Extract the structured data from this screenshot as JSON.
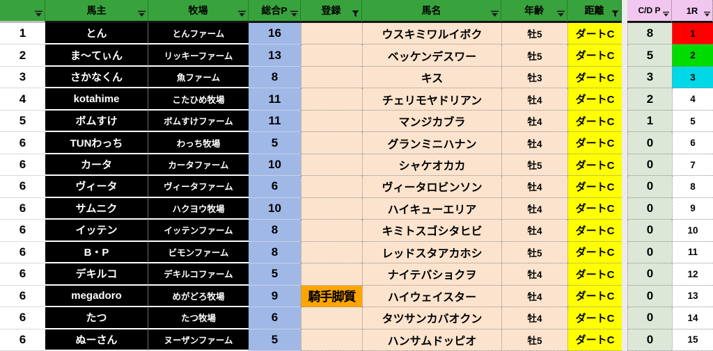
{
  "table": {
    "headers": [
      {
        "label": "",
        "filter": "dropdown"
      },
      {
        "label": "馬主",
        "filter": "dropdown"
      },
      {
        "label": "牧場",
        "filter": "dropdown"
      },
      {
        "label": "総合P",
        "filter": "dropdown"
      },
      {
        "label": "登録",
        "filter": "funnel"
      },
      {
        "label": "馬名",
        "filter": "dropdown"
      },
      {
        "label": "年齢",
        "filter": "dropdown"
      },
      {
        "label": "距離",
        "filter": "funnel"
      },
      {
        "label": "C/D P",
        "filter": "dropdown"
      },
      {
        "label": "1R",
        "filter": "dropdown"
      }
    ],
    "rows": [
      {
        "rank": "1",
        "owner": "とん",
        "farm": "とんファーム",
        "total_p": "16",
        "registration": "",
        "horse": "ウスキミワルイボク",
        "age": "牡5",
        "distance": "ダートC",
        "cd_p": "8",
        "r1": "1",
        "r1_color": "#FF0000"
      },
      {
        "rank": "2",
        "owner": "ま〜てぃん",
        "farm": "リッキーファーム",
        "total_p": "13",
        "registration": "",
        "horse": "ベッケンデスワー",
        "age": "牡5",
        "distance": "ダートC",
        "cd_p": "5",
        "r1": "2",
        "r1_color": "#00DC00"
      },
      {
        "rank": "3",
        "owner": "さかなくん",
        "farm": "魚ファーム",
        "total_p": "8",
        "registration": "",
        "horse": "キス",
        "age": "牡3",
        "distance": "ダートC",
        "cd_p": "3",
        "r1": "3",
        "r1_color": "#00D8E8"
      },
      {
        "rank": "4",
        "owner": "kotahime",
        "farm": "こたひめ牧場",
        "total_p": "11",
        "registration": "",
        "horse": "チェリモヤドリアン",
        "age": "牡4",
        "distance": "ダートC",
        "cd_p": "2",
        "r1": "4",
        "r1_color": ""
      },
      {
        "rank": "5",
        "owner": "ボムすけ",
        "farm": "ボムすけファーム",
        "total_p": "11",
        "registration": "",
        "horse": "マンジカブラ",
        "age": "牡4",
        "distance": "ダートC",
        "cd_p": "1",
        "r1": "5",
        "r1_color": ""
      },
      {
        "rank": "6",
        "owner": "TUNわっち",
        "farm": "わっち牧場",
        "total_p": "5",
        "registration": "",
        "horse": "グランミニハナン",
        "age": "牡4",
        "distance": "ダートC",
        "cd_p": "0",
        "r1": "6",
        "r1_color": ""
      },
      {
        "rank": "6",
        "owner": "カータ",
        "farm": "カータファーム",
        "total_p": "10",
        "registration": "",
        "horse": "シャケオカカ",
        "age": "牡5",
        "distance": "ダートC",
        "cd_p": "0",
        "r1": "7",
        "r1_color": ""
      },
      {
        "rank": "6",
        "owner": "ヴィータ",
        "farm": "ヴィータファーム",
        "total_p": "6",
        "registration": "",
        "horse": "ヴィータロビンソン",
        "age": "牡4",
        "distance": "ダートC",
        "cd_p": "0",
        "r1": "8",
        "r1_color": ""
      },
      {
        "rank": "6",
        "owner": "サムニク",
        "farm": "ハクヨウ牧場",
        "total_p": "10",
        "registration": "",
        "horse": "ハイキューエリア",
        "age": "牡4",
        "distance": "ダートC",
        "cd_p": "0",
        "r1": "9",
        "r1_color": ""
      },
      {
        "rank": "6",
        "owner": "イッテン",
        "farm": "イッテンファーム",
        "total_p": "8",
        "registration": "",
        "horse": "キミトスゴシタヒビ",
        "age": "牡4",
        "distance": "ダートC",
        "cd_p": "0",
        "r1": "10",
        "r1_color": ""
      },
      {
        "rank": "6",
        "owner": "B・P",
        "farm": "ビモンファーム",
        "total_p": "8",
        "registration": "",
        "horse": "レッドスタアカホシ",
        "age": "牡5",
        "distance": "ダートC",
        "cd_p": "0",
        "r1": "11",
        "r1_color": ""
      },
      {
        "rank": "6",
        "owner": "デキルコ",
        "farm": "デキルコファーム",
        "total_p": "5",
        "registration": "",
        "horse": "ナイテバショクヲ",
        "age": "牡4",
        "distance": "ダートC",
        "cd_p": "0",
        "r1": "12",
        "r1_color": ""
      },
      {
        "rank": "6",
        "owner": "megadoro",
        "farm": "めがどろ牧場",
        "total_p": "9",
        "registration": "騎手脚質",
        "horse": "ハイウェイスター",
        "age": "牡4",
        "distance": "ダートC",
        "cd_p": "0",
        "r1": "13",
        "r1_color": ""
      },
      {
        "rank": "6",
        "owner": "たつ",
        "farm": "たつ牧場",
        "total_p": "6",
        "registration": "",
        "horse": "タツサンカバオクン",
        "age": "牡4",
        "distance": "ダートC",
        "cd_p": "0",
        "r1": "14",
        "r1_color": ""
      },
      {
        "rank": "6",
        "owner": "ぬーさん",
        "farm": "ヌーザンファーム",
        "total_p": "5",
        "registration": "",
        "horse": "ハンサムドッピオ",
        "age": "牡5",
        "distance": "ダートC",
        "cd_p": "0",
        "r1": "15",
        "r1_color": ""
      }
    ]
  },
  "colors": {
    "header_green": "#38A33C",
    "header_pink": "#F1C7EF",
    "total_p_blue": "#A0B8E6",
    "peach": "#FBE3CD",
    "distance_yellow": "#FFFF00",
    "cdp_sage": "#DDE7D7",
    "registration_highlight_orange": "#FFA500",
    "owner_farm_black": "#000000",
    "r1_rank1_red": "#FF0000",
    "r1_rank2_green": "#00DC00",
    "r1_rank3_cyan": "#00D8E8"
  }
}
